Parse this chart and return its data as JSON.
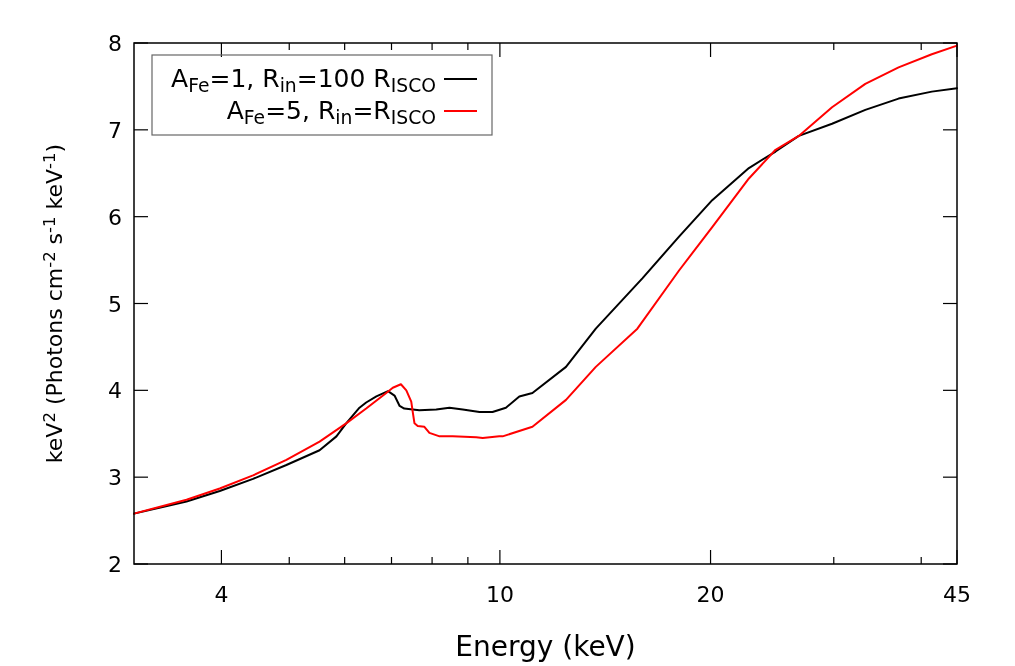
{
  "chart_data": {
    "type": "line",
    "xlabel": "Energy (keV)",
    "ylabel": "keV$^{2}$ (Photons cm$^{-2}$ s$^{-1}$ keV$^{-1}$)",
    "log": "x",
    "xlim": [
      3,
      45
    ],
    "ylim": [
      2,
      8
    ],
    "xticks": [
      4,
      {
        "value": 5,
        "label": null
      },
      {
        "value": 6,
        "label": null
      },
      {
        "value": 7,
        "label": null
      },
      {
        "value": 8,
        "label": null
      },
      {
        "value": 9,
        "label": null
      },
      10,
      20,
      {
        "value": 30,
        "label": null
      },
      {
        "value": 40,
        "label": null
      },
      45
    ],
    "yticks": [
      2,
      3,
      4,
      5,
      6,
      7,
      8
    ],
    "grid": false,
    "legend": "top left",
    "line_style": "solid",
    "marker": "none",
    "series": [
      {
        "name": "A$_{Fe}$=1, R$_{in}$=100 R$_{ISCO}$",
        "color": "#000000",
        "x": [
          3,
          3.566,
          3.978,
          4.438,
          4.953,
          5.525,
          5.84,
          6.03,
          6.3,
          6.44,
          6.66,
          6.92,
          7.07,
          7.19,
          7.3,
          7.67,
          8.11,
          8.47,
          8.85,
          9.35,
          9.76,
          10.2,
          10.66,
          11.13,
          12.43,
          13.71,
          15.98,
          18.03,
          20.11,
          22.69,
          24.77,
          26.74,
          29.83,
          33.28,
          37.13,
          41.42,
          45
        ],
        "values": [
          2.58,
          2.72,
          2.84,
          2.98,
          3.14,
          3.31,
          3.47,
          3.62,
          3.8,
          3.86,
          3.93,
          3.99,
          3.94,
          3.82,
          3.79,
          3.77,
          3.78,
          3.8,
          3.78,
          3.75,
          3.75,
          3.8,
          3.93,
          3.97,
          4.27,
          4.71,
          5.29,
          5.77,
          6.19,
          6.56,
          6.75,
          6.93,
          7.07,
          7.23,
          7.36,
          7.44,
          7.48
        ]
      },
      {
        "name": "A$_{Fe}$=5, R$_{in}$=R$_{ISCO}$",
        "color": "#ff0000",
        "x": [
          3,
          3.566,
          3.978,
          4.438,
          4.953,
          5.525,
          6.03,
          6.44,
          6.88,
          7.03,
          7.22,
          7.35,
          7.47,
          7.51,
          7.55,
          7.63,
          7.8,
          7.93,
          8.2,
          8.56,
          9.25,
          9.45,
          9.98,
          10.09,
          11.13,
          12.43,
          13.71,
          15.72,
          18.03,
          20.11,
          22.69,
          24.77,
          26.74,
          29.83,
          33.28,
          37.13,
          41.42,
          45
        ],
        "values": [
          2.58,
          2.74,
          2.87,
          3.02,
          3.2,
          3.41,
          3.62,
          3.79,
          3.97,
          4.03,
          4.07,
          4.0,
          3.87,
          3.74,
          3.62,
          3.59,
          3.58,
          3.51,
          3.47,
          3.47,
          3.46,
          3.45,
          3.47,
          3.47,
          3.58,
          3.89,
          4.27,
          4.71,
          5.38,
          5.88,
          6.44,
          6.77,
          6.93,
          7.26,
          7.53,
          7.72,
          7.87,
          7.97
        ]
      }
    ]
  }
}
